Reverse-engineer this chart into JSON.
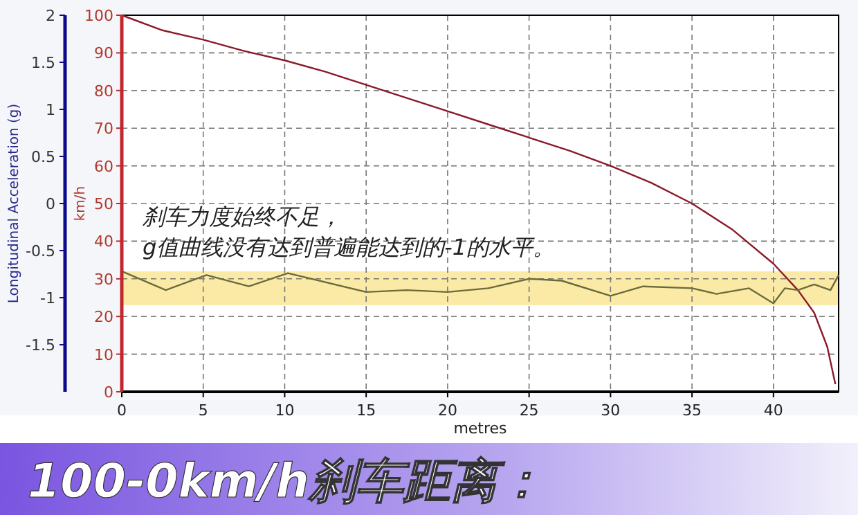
{
  "chart_data": {
    "type": "line",
    "title": "100-0km/h刹车距离：",
    "xlabel": "metres",
    "ylabel": "km/h",
    "y2label": "Longitudinal Acceleration (g)",
    "annotations": [
      "刹车力度始终不足，",
      "g值曲线没有达到普遍能达到的-1的水平。"
    ],
    "xlim": [
      0,
      44
    ],
    "xticks": [
      0,
      5,
      10,
      15,
      20,
      25,
      30,
      35,
      40
    ],
    "ylim": [
      0,
      100
    ],
    "yticks": [
      0,
      10,
      20,
      30,
      40,
      50,
      60,
      70,
      80,
      90,
      100
    ],
    "y2lim": [
      -2,
      2
    ],
    "y2ticks": [
      -1.5,
      -1,
      -0.5,
      0,
      0.5,
      1,
      1.5,
      2
    ],
    "grid": true,
    "bands": [
      {
        "axis": "y2",
        "from": -1.08,
        "to": -0.72,
        "color": "#fbeaa6"
      }
    ],
    "series": [
      {
        "color": "#8b1a2a",
        "x": [
          0,
          2.5,
          5,
          7.5,
          10,
          12.5,
          15,
          17.5,
          20,
          22.5,
          25,
          27.5,
          30,
          32.5,
          35,
          37.5,
          40,
          41.5,
          42.5,
          43.3,
          43.8
        ],
        "values": [
          100,
          96,
          93.5,
          90.5,
          88,
          85,
          81.5,
          78,
          74.5,
          71,
          67.5,
          64,
          60,
          55.5,
          50,
          43,
          34,
          27,
          21,
          12,
          2
        ]
      },
      {
        "color": "#6b6b3a",
        "axis": "y2",
        "x": [
          0,
          2.7,
          5.2,
          7.8,
          10.2,
          15,
          17.5,
          20,
          22.5,
          25,
          27,
          30,
          32,
          35,
          36.5,
          38.5,
          40,
          40.7,
          41.5,
          42.5,
          43.5,
          44
        ],
        "values": [
          -0.72,
          -0.92,
          -0.76,
          -0.88,
          -0.74,
          -0.94,
          -0.92,
          -0.94,
          -0.9,
          -0.8,
          -0.82,
          -0.98,
          -0.88,
          -0.9,
          -0.96,
          -0.9,
          -1.06,
          -0.9,
          -0.92,
          -0.86,
          -0.92,
          -0.76
        ]
      }
    ]
  }
}
